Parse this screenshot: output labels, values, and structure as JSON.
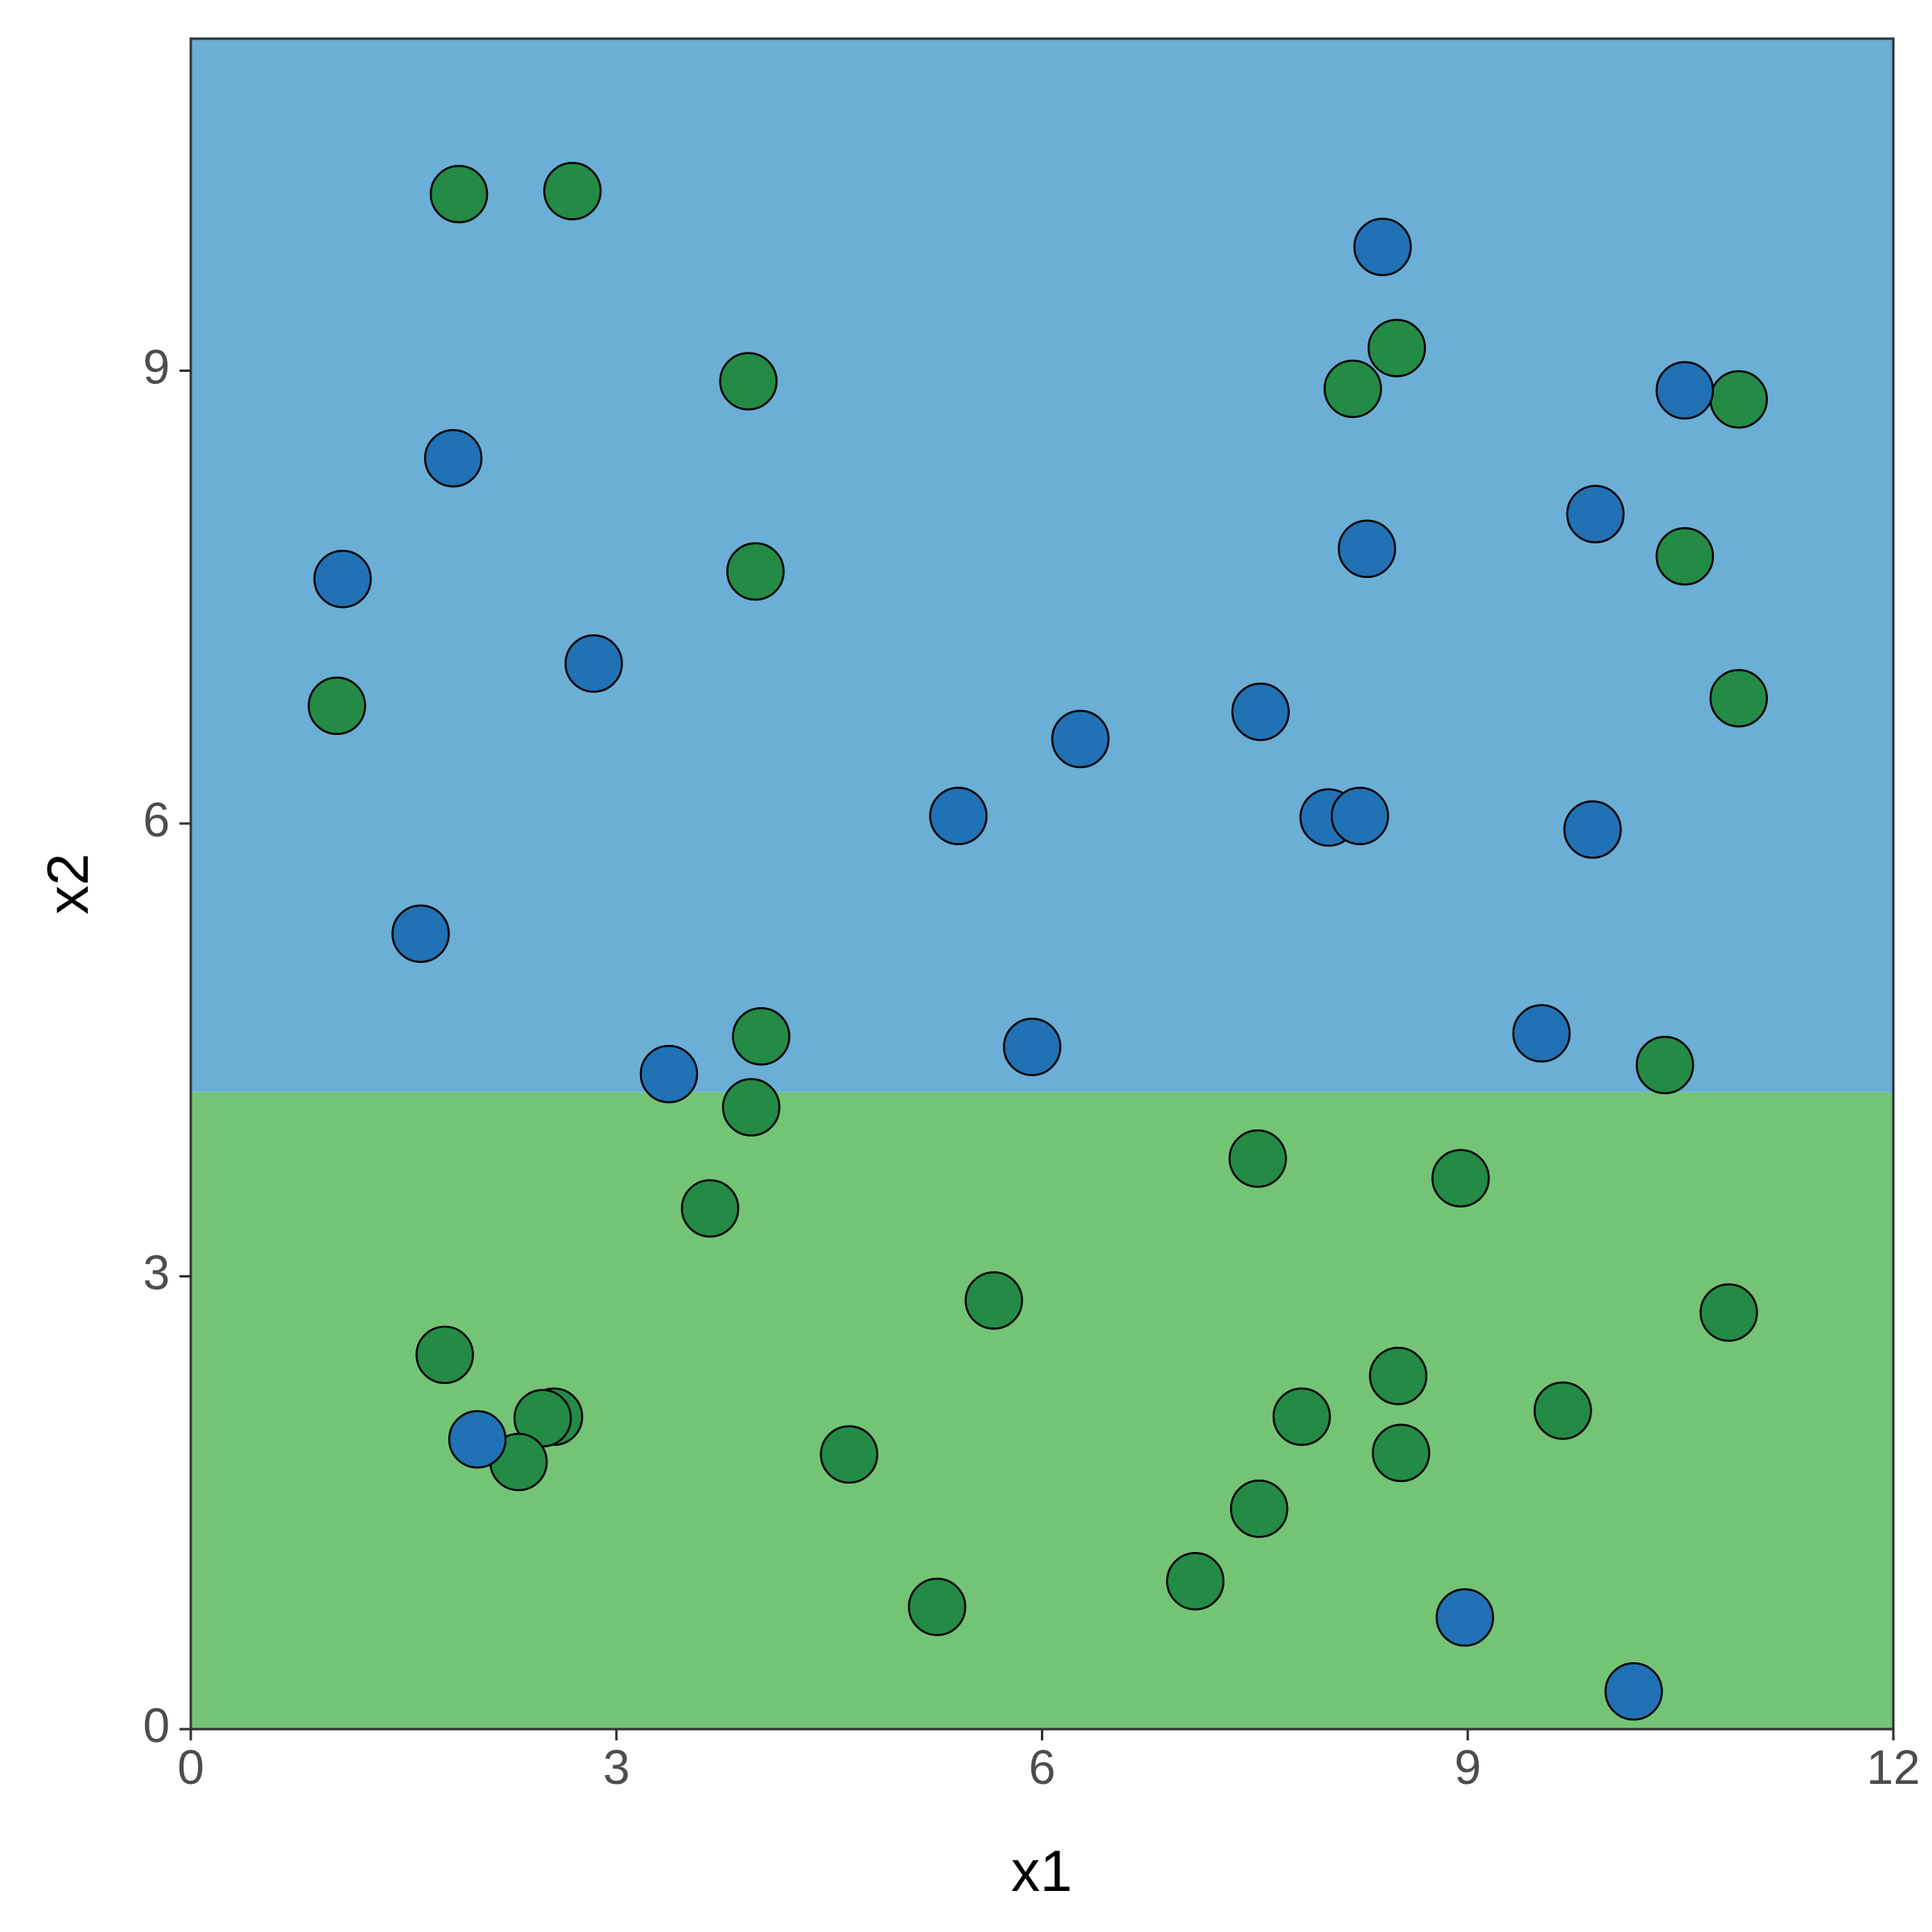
{
  "chart_data": {
    "type": "scatter",
    "x_label": "x1",
    "y_label": "x2",
    "xlim": [
      0,
      12
    ],
    "ylim": [
      0,
      11.2
    ],
    "xticks": [
      0,
      3,
      6,
      9,
      12
    ],
    "yticks": [
      0,
      3,
      6,
      9
    ],
    "grid": false,
    "regions": [
      {
        "y": [
          0,
          4.22
        ],
        "color": "#74c476"
      },
      {
        "y": [
          4.22,
          11.2
        ],
        "color": "#6baed6"
      }
    ],
    "series": [
      {
        "color": "#238b45",
        "x": [
          1.89,
          2.69,
          3.93,
          3.98,
          1.03,
          8.5,
          8.19,
          10.91,
          10.53,
          10.91,
          4.02,
          3.95,
          10.39,
          3.66,
          7.52,
          8.95,
          5.66,
          10.84,
          1.79,
          2.56,
          2.48,
          2.31,
          4.64,
          8.51,
          7.83,
          9.67,
          8.53,
          7.53,
          7.08,
          5.26
        ],
        "values": [
          10.17,
          10.19,
          8.93,
          7.67,
          6.78,
          9.15,
          8.88,
          8.81,
          7.77,
          6.83,
          4.59,
          4.12,
          4.4,
          3.45,
          3.78,
          3.65,
          2.84,
          2.76,
          2.48,
          2.07,
          2.06,
          1.77,
          1.82,
          2.34,
          2.07,
          2.11,
          1.83,
          1.46,
          0.98,
          0.81
        ]
      },
      {
        "color": "#2171b5",
        "x": [
          8.4,
          10.53,
          1.85,
          9.9,
          8.29,
          1.07,
          2.84,
          6.27,
          7.54,
          5.41,
          8.02,
          8.24,
          9.88,
          1.62,
          3.37,
          5.93,
          9.52,
          2.02,
          8.98,
          10.17
        ],
        "values": [
          9.82,
          8.87,
          8.42,
          8.05,
          7.82,
          7.62,
          7.06,
          6.56,
          6.74,
          6.05,
          6.04,
          6.05,
          5.96,
          5.27,
          4.34,
          4.52,
          4.61,
          1.92,
          0.74,
          0.25
        ]
      }
    ]
  }
}
